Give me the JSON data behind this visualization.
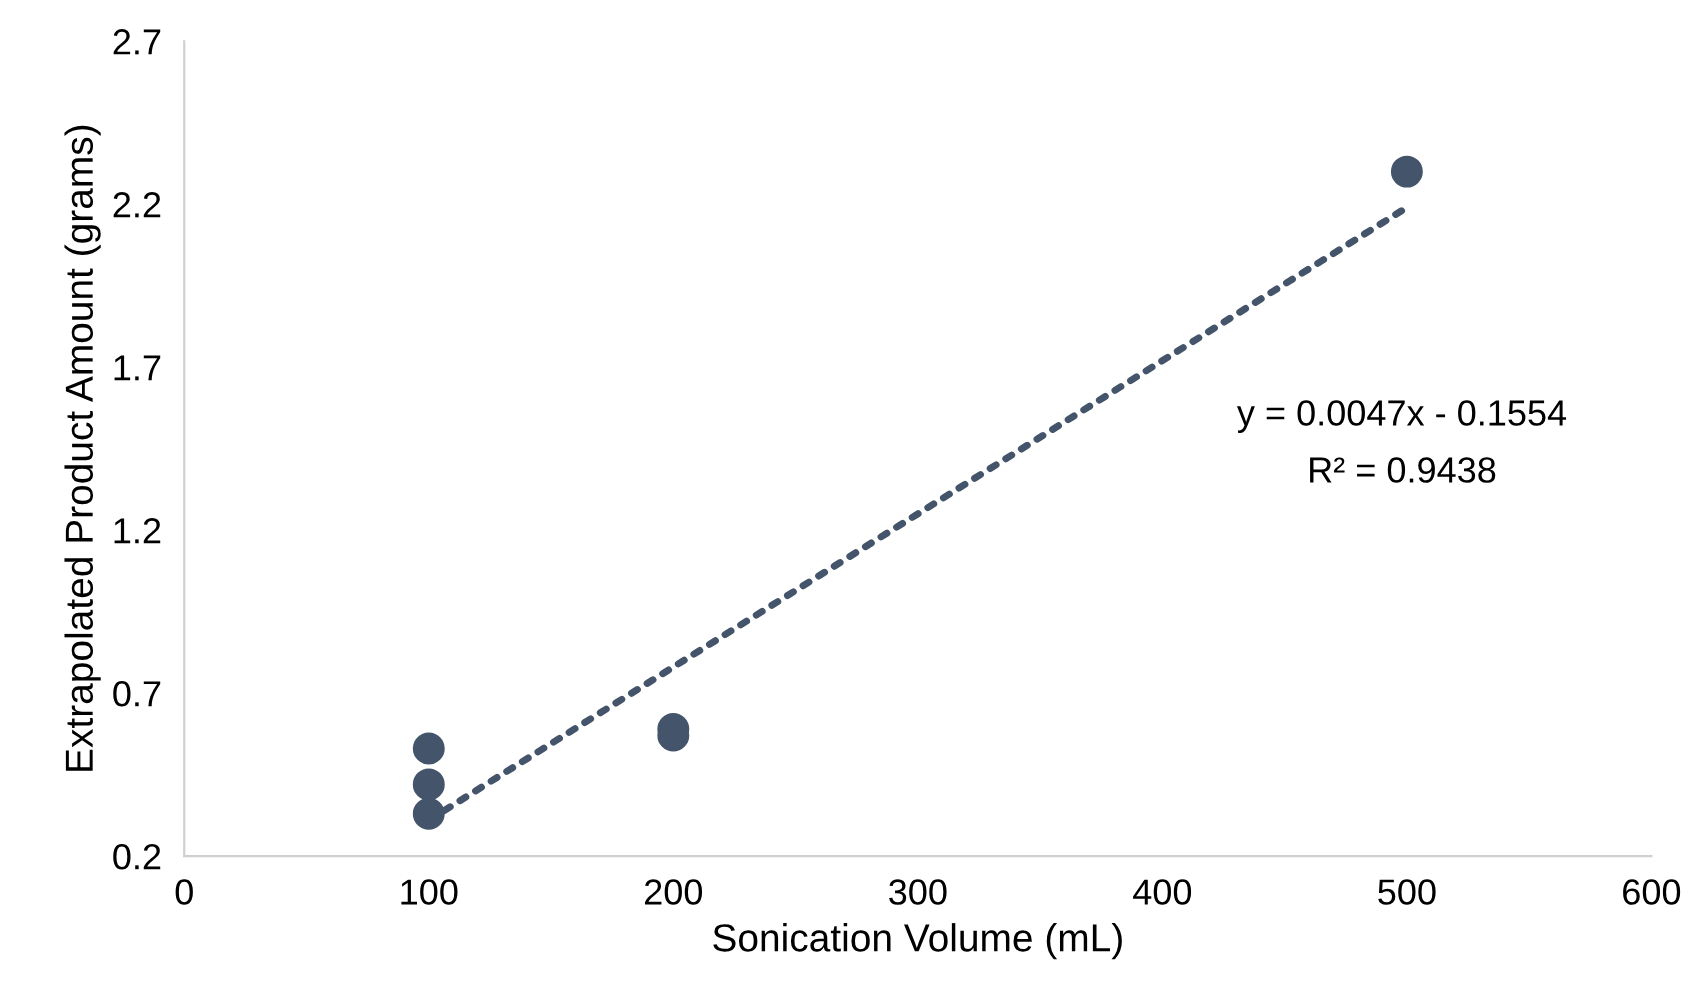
{
  "chart_data": {
    "type": "scatter",
    "xlabel": "Sonication Volume (mL)",
    "ylabel": "Extrapolated Product Amount (grams)",
    "xlim": [
      0,
      600
    ],
    "xticks": [
      0,
      100,
      200,
      300,
      400,
      500,
      600
    ],
    "ylim": [
      0.2,
      2.7
    ],
    "yticks": [
      0.2,
      0.7,
      1.2,
      1.7,
      2.2,
      2.7
    ],
    "grid": false,
    "legend": false,
    "series": [
      {
        "marker": "circle",
        "color": "#44546a",
        "x": [
          100,
          100,
          100,
          200,
          200,
          500
        ],
        "values": [
          0.53,
          0.42,
          0.33,
          0.59,
          0.57,
          2.3
        ]
      },
      {
        "type": "line",
        "color": "#44546a",
        "line_style": "dotted",
        "x": [
          100,
          500
        ],
        "values": [
          0.31,
          2.19
        ]
      }
    ],
    "annotations": [
      "y = 0.0047x - 0.1554",
      "R² = 0.9438"
    ]
  }
}
